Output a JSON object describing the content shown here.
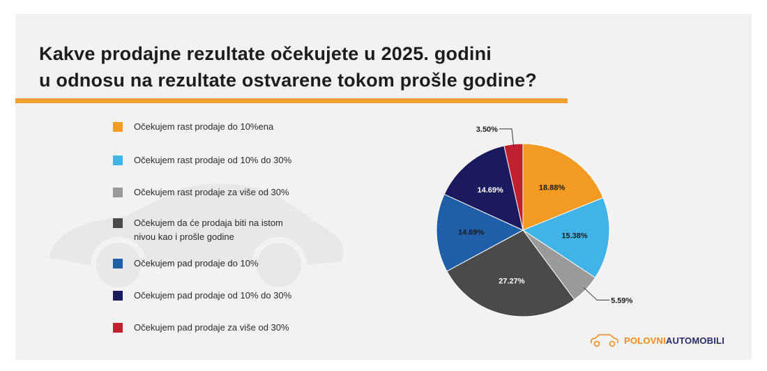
{
  "title": {
    "line1": "Kakve prodajne rezultate očekujete u 2025. godini",
    "line2": "u odnosu na rezultate ostvarene tokom prošle godine?"
  },
  "colors": {
    "accent": "#f0a030",
    "rise_to_10": "#f29a22",
    "rise_10_30": "#41b3e6",
    "rise_over_30": "#9a9a9a",
    "same_level": "#4a4a4a",
    "fall_to_10": "#1f5fa8",
    "fall_10_30": "#1c1a5e",
    "fall_over_30": "#c0202f"
  },
  "chart_data": {
    "type": "pie",
    "title": "Kakve prodajne rezultate očekujete u 2025. godini u odnosu na rezultate ostvarene tokom prošle godine?",
    "legend_position": "left",
    "slices": [
      {
        "label": "Očekujem rast prodaje do 10%ena",
        "value": 18.88,
        "value_label": "18.88%",
        "color": "#f29a22"
      },
      {
        "label": "Očekujem rast prodaje od 10% do 30%",
        "value": 15.38,
        "value_label": "15.38%",
        "color": "#41b3e6"
      },
      {
        "label": "Očekujem rast prodaje za više od 30%",
        "value": 5.59,
        "value_label": "5.59%",
        "color": "#9a9a9a"
      },
      {
        "label": "Očekujem da će prodaja biti na istom\nnivou kao i prošle godine",
        "value": 27.27,
        "value_label": "27.27%",
        "color": "#4a4a4a"
      },
      {
        "label": "Očekujem pad prodaje do 10%",
        "value": 14.69,
        "value_label": "14.69%",
        "color": "#1f5fa8"
      },
      {
        "label": "Očekujem pad prodaje od 10% do 30%",
        "value": 14.69,
        "value_label": "14.69%",
        "color": "#1c1a5e"
      },
      {
        "label": "Očekujem pad prodaje za više od 30%",
        "value": 3.5,
        "value_label": "3.50%",
        "color": "#c0202f"
      }
    ]
  },
  "logo": {
    "part1": "POLOVNI",
    "part2": "AUTOMOBILI"
  }
}
